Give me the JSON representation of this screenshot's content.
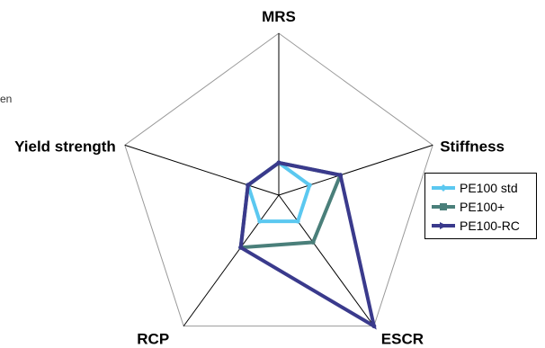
{
  "stray_text": "en",
  "chart_data": {
    "type": "radar",
    "title": "",
    "axes": [
      "MRS",
      "Stiffness",
      "ESCR",
      "RCP",
      "Yield strength"
    ],
    "range": [
      0,
      5
    ],
    "series": [
      {
        "name": "PE100 std",
        "color": "#5bc8f0",
        "values": [
          1.0,
          1.0,
          1.0,
          1.0,
          1.0
        ]
      },
      {
        "name": "PE100+",
        "color": "#4a7f7a",
        "values": [
          1.0,
          2.0,
          1.8,
          2.0,
          1.0
        ]
      },
      {
        "name": "PE100-RC",
        "color": "#3a3a8c",
        "values": [
          1.0,
          2.0,
          5.0,
          2.0,
          1.0
        ]
      }
    ],
    "legend": "right"
  }
}
